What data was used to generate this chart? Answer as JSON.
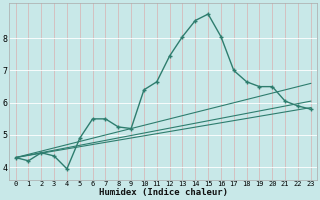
{
  "title": "",
  "xlabel": "Humidex (Indice chaleur)",
  "x_ticks": [
    0,
    1,
    2,
    3,
    4,
    5,
    6,
    7,
    8,
    9,
    10,
    11,
    12,
    13,
    14,
    15,
    16,
    17,
    18,
    19,
    20,
    21,
    22,
    23
  ],
  "y_ticks": [
    4,
    5,
    6,
    7,
    8
  ],
  "ylim": [
    3.6,
    9.1
  ],
  "xlim": [
    -0.5,
    23.5
  ],
  "bg_color": "#c8e8e8",
  "grid_color": "#b0d8d8",
  "line_color": "#2e7d6e",
  "main_curve_x": [
    0,
    1,
    2,
    3,
    4,
    5,
    6,
    7,
    8,
    9,
    10,
    11,
    12,
    13,
    14,
    15,
    16,
    17,
    18,
    19,
    20,
    21,
    22,
    23
  ],
  "main_curve_y": [
    4.3,
    4.2,
    4.45,
    4.35,
    3.95,
    4.9,
    5.5,
    5.5,
    5.25,
    5.2,
    6.4,
    6.65,
    7.45,
    8.05,
    8.55,
    8.75,
    8.05,
    7.0,
    6.65,
    6.5,
    6.5,
    6.05,
    5.9,
    5.8
  ],
  "line2_x": [
    0,
    23
  ],
  "line2_y": [
    4.3,
    6.05
  ],
  "line3_x": [
    0,
    23
  ],
  "line3_y": [
    4.3,
    5.85
  ],
  "line4_x": [
    0,
    23
  ],
  "line4_y": [
    4.3,
    6.6
  ]
}
